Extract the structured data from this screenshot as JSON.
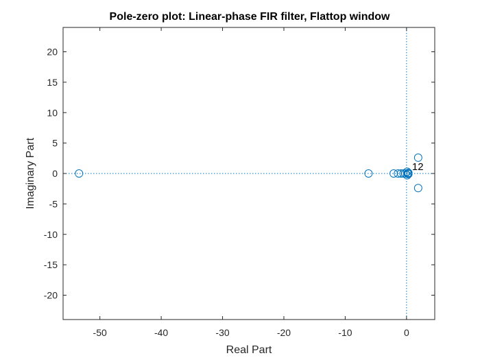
{
  "chart_data": {
    "type": "scatter",
    "title": "Pole-zero plot: Linear-phase FIR filter, Flattop window",
    "xlabel": "Real Part",
    "ylabel": "Imaginary Part",
    "xlim": [
      -56,
      4.6
    ],
    "ylim": [
      -24,
      24
    ],
    "xticks": [
      -50,
      -40,
      -30,
      -20,
      -10,
      0
    ],
    "yticks": [
      -20,
      -15,
      -10,
      -5,
      0,
      5,
      10,
      15,
      20
    ],
    "xtick_labels": [
      "-50",
      "-40",
      "-30",
      "-20",
      "-10",
      "0"
    ],
    "ytick_labels": [
      "-20",
      "-15",
      "-10",
      "-5",
      "0",
      "5",
      "10",
      "15",
      "20"
    ],
    "grid": false,
    "marker": "circle",
    "color": "#0072BD",
    "reference_lines": {
      "x": 0,
      "y": 0,
      "style": "dotted"
    },
    "zeros": [
      {
        "x": -53.4,
        "y": 0
      },
      {
        "x": -6.2,
        "y": 0
      },
      {
        "x": -2.1,
        "y": 0
      },
      {
        "x": -1.4,
        "y": 0
      },
      {
        "x": -0.9,
        "y": 0
      },
      {
        "x": -0.5,
        "y": 0
      },
      {
        "x": -0.2,
        "y": 0
      },
      {
        "x": 0.1,
        "y": 0.3
      },
      {
        "x": 0.1,
        "y": -0.3
      },
      {
        "x": 0.3,
        "y": 0.1
      },
      {
        "x": 0.3,
        "y": -0.1
      },
      {
        "x": 0.2,
        "y": 0
      },
      {
        "x": 1.9,
        "y": 2.6
      },
      {
        "x": 1.9,
        "y": -2.4
      }
    ],
    "annotations": [
      {
        "text": "12",
        "x": 0.9,
        "y": 1.1
      }
    ]
  }
}
